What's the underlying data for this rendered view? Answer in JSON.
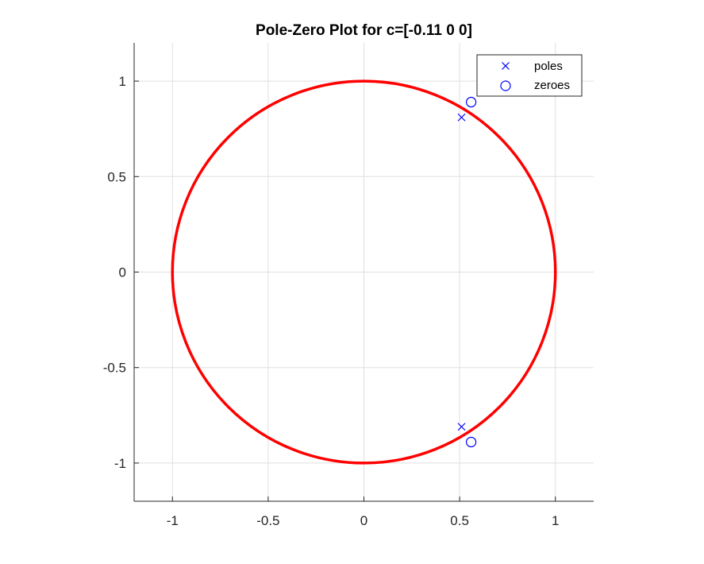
{
  "chart_data": {
    "type": "scatter",
    "title": "Pole-Zero Plot for c=[-0.11 0 0]",
    "xlabel": "",
    "ylabel": "",
    "xlim": [
      -1.2,
      1.2
    ],
    "ylim": [
      -1.2,
      1.2
    ],
    "x_ticks": [
      -1,
      -0.5,
      0,
      0.5,
      1
    ],
    "y_ticks": [
      -1,
      -0.5,
      0,
      0.5,
      1
    ],
    "x_tick_labels": [
      "-1",
      "-0.5",
      "0",
      "0.5",
      "1"
    ],
    "y_tick_labels": [
      "-1",
      "-0.5",
      "0",
      "0.5",
      "1"
    ],
    "grid": true,
    "legend_position": "top-right",
    "unit_circle": {
      "radius": 1,
      "color": "#ff0000"
    },
    "series": [
      {
        "name": "poles",
        "marker": "x",
        "color": "#0000ff",
        "points": [
          [
            0.51,
            0.81
          ],
          [
            0.51,
            -0.81
          ]
        ]
      },
      {
        "name": "zeroes",
        "marker": "o",
        "color": "#0000ff",
        "points": [
          [
            0.56,
            0.89
          ],
          [
            0.56,
            -0.89
          ]
        ]
      }
    ]
  }
}
